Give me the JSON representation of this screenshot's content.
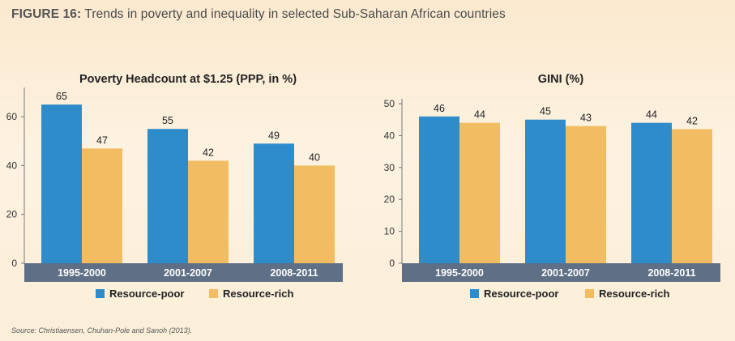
{
  "figure": {
    "title_lead": "FIGURE 16:",
    "title_rest": " Trends in poverty and inequality in selected Sub-Saharan African countries",
    "source": "Source: Christiaensen, Chuhan-Pole and Sanoh (2013)."
  },
  "colors": {
    "resource_poor": "#2f8ccb",
    "resource_rich": "#f2bd62",
    "axis_band": "#5e6f86"
  },
  "chart_data": [
    {
      "type": "bar",
      "title": "Poverty Headcount at $1.25 (PPP, in %)",
      "categories": [
        "1995-2000",
        "2001-2007",
        "2008-2011"
      ],
      "series": [
        {
          "name": "Resource-poor",
          "values": [
            65,
            55,
            49
          ]
        },
        {
          "name": "Resource-rich",
          "values": [
            47,
            42,
            40
          ]
        }
      ],
      "ylim": [
        0,
        70
      ],
      "yticks": [
        0,
        20,
        40,
        60
      ],
      "legend": "bottom"
    },
    {
      "type": "bar",
      "title": "GINI (%)",
      "categories": [
        "1995-2000",
        "2001-2007",
        "2008-2011"
      ],
      "series": [
        {
          "name": "Resource-poor",
          "values": [
            46,
            45,
            44
          ]
        },
        {
          "name": "Resource-rich",
          "values": [
            44,
            43,
            42
          ]
        }
      ],
      "ylim": [
        0,
        50
      ],
      "yticks": [
        0,
        10,
        20,
        30,
        40,
        50
      ],
      "legend": "bottom"
    }
  ]
}
